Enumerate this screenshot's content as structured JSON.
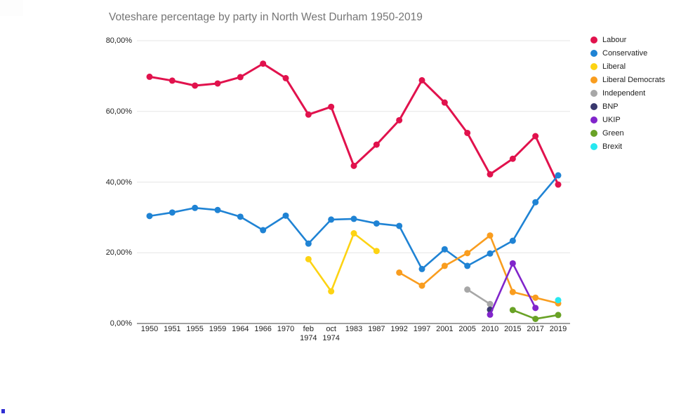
{
  "title": "Voteshare percentage by party in North West Durham 1950-2019",
  "chart_data": {
    "type": "line",
    "title": "Voteshare percentage by party in North West Durham 1950-2019",
    "xlabel": "",
    "ylabel": "",
    "ylim": [
      0,
      80
    ],
    "grid": "horizontal",
    "legend_position": "right",
    "categories": [
      "1950",
      "1951",
      "1955",
      "1959",
      "1964",
      "1966",
      "1970",
      "feb 1974",
      "oct 1974",
      "1983",
      "1987",
      "1992",
      "1997",
      "2001",
      "2005",
      "2010",
      "2015",
      "2017",
      "2019"
    ],
    "category_labels": [
      "1950",
      "1951",
      "1955",
      "1959",
      "1964",
      "1966",
      "1970",
      "feb\n1974",
      "oct\n1974",
      "1983",
      "1987",
      "1992",
      "1997",
      "2001",
      "2005",
      "2010",
      "2015",
      "2017",
      "2019"
    ],
    "y_ticks": [
      {
        "value": 80,
        "label": "80,00%"
      },
      {
        "value": 60,
        "label": "60,00%"
      },
      {
        "value": 40,
        "label": "40,00%"
      },
      {
        "value": 20,
        "label": "20,00%"
      },
      {
        "value": 0,
        "label": "0,00%"
      }
    ],
    "series": [
      {
        "name": "Labour",
        "color": "#e1124d",
        "values": [
          69.8,
          68.7,
          67.3,
          67.9,
          69.7,
          73.5,
          69.4,
          59.1,
          61.3,
          44.6,
          50.6,
          57.5,
          68.8,
          62.5,
          53.9,
          42.2,
          46.6,
          53.0,
          39.3
        ]
      },
      {
        "name": "Conservative",
        "color": "#1f83d4",
        "values": [
          30.4,
          31.4,
          32.7,
          32.1,
          30.2,
          26.4,
          30.5,
          22.6,
          29.4,
          29.6,
          28.3,
          27.6,
          15.4,
          21.0,
          16.3,
          19.8,
          23.4,
          34.3,
          41.9
        ]
      },
      {
        "name": "Liberal",
        "color": "#fdd313",
        "values": [
          null,
          null,
          null,
          null,
          null,
          null,
          null,
          18.2,
          9.1,
          25.5,
          20.5,
          null,
          null,
          null,
          null,
          null,
          null,
          null,
          null
        ]
      },
      {
        "name": "Liberal Democrats",
        "color": "#f99d1f",
        "values": [
          null,
          null,
          null,
          null,
          null,
          null,
          null,
          null,
          null,
          null,
          null,
          14.4,
          10.7,
          16.3,
          19.9,
          24.9,
          8.9,
          7.3,
          5.7
        ]
      },
      {
        "name": "Independent",
        "color": "#a7a7a7",
        "values": [
          null,
          null,
          null,
          null,
          null,
          null,
          null,
          null,
          null,
          null,
          null,
          null,
          null,
          null,
          9.6,
          5.5,
          null,
          null,
          null
        ]
      },
      {
        "name": "BNP",
        "color": "#39386e",
        "values": [
          null,
          null,
          null,
          null,
          null,
          null,
          null,
          null,
          null,
          null,
          null,
          null,
          null,
          null,
          null,
          3.9,
          null,
          null,
          null
        ]
      },
      {
        "name": "UKIP",
        "color": "#8125cb",
        "values": [
          null,
          null,
          null,
          null,
          null,
          null,
          null,
          null,
          null,
          null,
          null,
          null,
          null,
          null,
          null,
          2.5,
          17.0,
          4.4,
          null
        ]
      },
      {
        "name": "Green",
        "color": "#69a226",
        "values": [
          null,
          null,
          null,
          null,
          null,
          null,
          null,
          null,
          null,
          null,
          null,
          null,
          null,
          null,
          null,
          null,
          3.8,
          1.3,
          2.4
        ]
      },
      {
        "name": "Brexit",
        "color": "#27e8f0",
        "values": [
          null,
          null,
          null,
          null,
          null,
          null,
          null,
          null,
          null,
          null,
          null,
          null,
          null,
          null,
          null,
          null,
          null,
          null,
          6.6
        ]
      }
    ],
    "colors": {
      "grid": "#e6e6e6",
      "axis_line": "#424242",
      "title_text": "#757575",
      "tick_text": "#222222"
    }
  },
  "artifacts": {
    "bottom_left_mark_color": "#2f2dd3"
  }
}
